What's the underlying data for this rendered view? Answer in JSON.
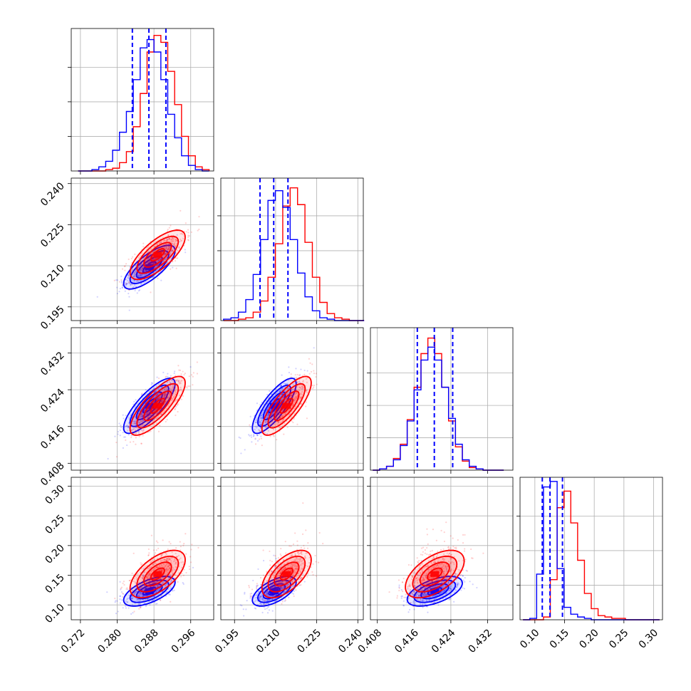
{
  "chart_data": {
    "type": "corner",
    "grid": true,
    "legend": "none",
    "colors": {
      "series_a": "#0000ff",
      "series_b": "#ff0000",
      "quantile_lines": "#0000ff"
    },
    "parameters": [
      {
        "range": [
          0.27,
          0.301
        ],
        "ticks": [
          "0.272",
          "0.280",
          "0.288",
          "0.296"
        ],
        "tick_values": [
          0.272,
          0.28,
          0.288,
          0.296
        ]
      },
      {
        "range": [
          0.19,
          0.242
        ],
        "ticks": [
          "0.195",
          "0.210",
          "0.225",
          "0.240"
        ],
        "tick_values": [
          0.195,
          0.21,
          0.225,
          0.24
        ]
      },
      {
        "range": [
          0.4065,
          0.4375
        ],
        "ticks": [
          "0.408",
          "0.416",
          "0.424",
          "0.432"
        ],
        "tick_values": [
          0.408,
          0.416,
          0.424,
          0.432
        ]
      },
      {
        "range": [
          0.075,
          0.315
        ],
        "ticks": [
          "0.10",
          "0.15",
          "0.20",
          "0.25",
          "0.30"
        ],
        "tick_values": [
          0.1,
          0.15,
          0.2,
          0.25,
          0.3
        ]
      }
    ],
    "histograms": [
      {
        "bin_edges": [
          0.2715,
          0.273,
          0.2745,
          0.276,
          0.2775,
          0.279,
          0.2805,
          0.282,
          0.2835,
          0.285,
          0.2865,
          0.288,
          0.2895,
          0.291,
          0.2925,
          0.294,
          0.2955,
          0.297,
          0.2985,
          0.3
        ],
        "series_a": [
          0.0,
          0.0,
          0.01,
          0.03,
          0.07,
          0.15,
          0.28,
          0.43,
          0.66,
          0.89,
          0.95,
          0.86,
          0.66,
          0.41,
          0.24,
          0.11,
          0.04,
          0.01,
          0.0
        ],
        "series_b": [
          0.0,
          0.0,
          0.0,
          0.0,
          0.01,
          0.02,
          0.06,
          0.14,
          0.32,
          0.56,
          0.86,
          0.98,
          0.93,
          0.72,
          0.48,
          0.25,
          0.11,
          0.03,
          0.01
        ],
        "ymax": 1.03,
        "quantiles": [
          0.2833,
          0.2869,
          0.2906
        ]
      },
      {
        "bin_edges": [
          0.191,
          0.1937,
          0.1964,
          0.1991,
          0.2018,
          0.2045,
          0.2072,
          0.2099,
          0.2126,
          0.2153,
          0.218,
          0.2207,
          0.2234,
          0.2261,
          0.2288,
          0.2315,
          0.2342,
          0.2369,
          0.2396,
          0.2423
        ],
        "series_a": [
          0.01,
          0.02,
          0.06,
          0.15,
          0.33,
          0.58,
          0.86,
          0.93,
          0.81,
          0.58,
          0.34,
          0.17,
          0.07,
          0.02,
          0.01,
          0.0,
          0.0,
          0.0,
          0.0
        ],
        "series_b": [
          0.0,
          0.0,
          0.01,
          0.02,
          0.06,
          0.14,
          0.31,
          0.55,
          0.82,
          0.95,
          0.83,
          0.56,
          0.31,
          0.13,
          0.05,
          0.02,
          0.01,
          0.0,
          0.0
        ],
        "ymax": 1.02,
        "quantiles": [
          0.2043,
          0.2093,
          0.2145
        ]
      },
      {
        "bin_edges": [
          0.407,
          0.4085,
          0.41,
          0.4115,
          0.413,
          0.4145,
          0.416,
          0.4175,
          0.419,
          0.4205,
          0.422,
          0.4235,
          0.425,
          0.4265,
          0.428,
          0.4295,
          0.431,
          0.4325,
          0.434,
          0.4355
        ],
        "series_a": [
          0.0,
          0.01,
          0.03,
          0.08,
          0.19,
          0.38,
          0.62,
          0.85,
          0.95,
          0.85,
          0.64,
          0.4,
          0.2,
          0.08,
          0.03,
          0.01,
          0.0,
          0.0,
          0.0
        ],
        "series_b": [
          0.0,
          0.01,
          0.03,
          0.09,
          0.2,
          0.39,
          0.64,
          0.9,
          1.02,
          0.9,
          0.64,
          0.38,
          0.18,
          0.07,
          0.02,
          0.01,
          0.0,
          0.0,
          0.0
        ],
        "ymax": 1.1,
        "quantiles": [
          0.4167,
          0.4204,
          0.4244
        ]
      },
      {
        "bin_edges": [
          0.08,
          0.0915,
          0.103,
          0.1145,
          0.126,
          0.1375,
          0.149,
          0.1605,
          0.172,
          0.1835,
          0.195,
          0.2065,
          0.218,
          0.2295,
          0.241,
          0.2525,
          0.264,
          0.2755,
          0.287,
          0.2985,
          0.31
        ],
        "series_a": [
          0.0,
          0.01,
          0.33,
          0.96,
          1.0,
          0.37,
          0.09,
          0.04,
          0.02,
          0.01,
          0.0,
          0.0,
          0.0,
          0.0,
          0.0,
          0.0,
          0.0,
          0.0,
          0.0,
          0.0
        ],
        "series_b": [
          0.0,
          0.0,
          0.0,
          0.02,
          0.29,
          0.81,
          0.93,
          0.7,
          0.43,
          0.19,
          0.08,
          0.03,
          0.02,
          0.01,
          0.01,
          0.0,
          0.0,
          0.0,
          0.0,
          0.0
        ],
        "ymax": 1.03,
        "quantiles": [
          0.1125,
          0.1255,
          0.1465
        ]
      }
    ],
    "posteriors": {
      "series_a": {
        "mean": [
          0.287,
          0.2095,
          0.4205,
          0.123
        ],
        "sd": [
          0.0028,
          0.004,
          0.003,
          0.0125
        ],
        "corr": [
          [
            1,
            0.75,
            0.8,
            0.6
          ],
          [
            0.75,
            1,
            0.8,
            0.6
          ],
          [
            0.8,
            0.8,
            1,
            0.55
          ],
          [
            0.6,
            0.6,
            0.55,
            1
          ]
        ]
      },
      "series_b": {
        "mean": [
          0.2888,
          0.214,
          0.4205,
          0.152
        ],
        "sd": [
          0.003,
          0.0045,
          0.0032,
          0.02
        ],
        "corr": [
          [
            1,
            0.72,
            0.78,
            0.6
          ],
          [
            0.72,
            1,
            0.78,
            0.6
          ],
          [
            0.78,
            0.78,
            1,
            0.55
          ],
          [
            0.6,
            0.6,
            0.55,
            1
          ]
        ]
      }
    }
  }
}
